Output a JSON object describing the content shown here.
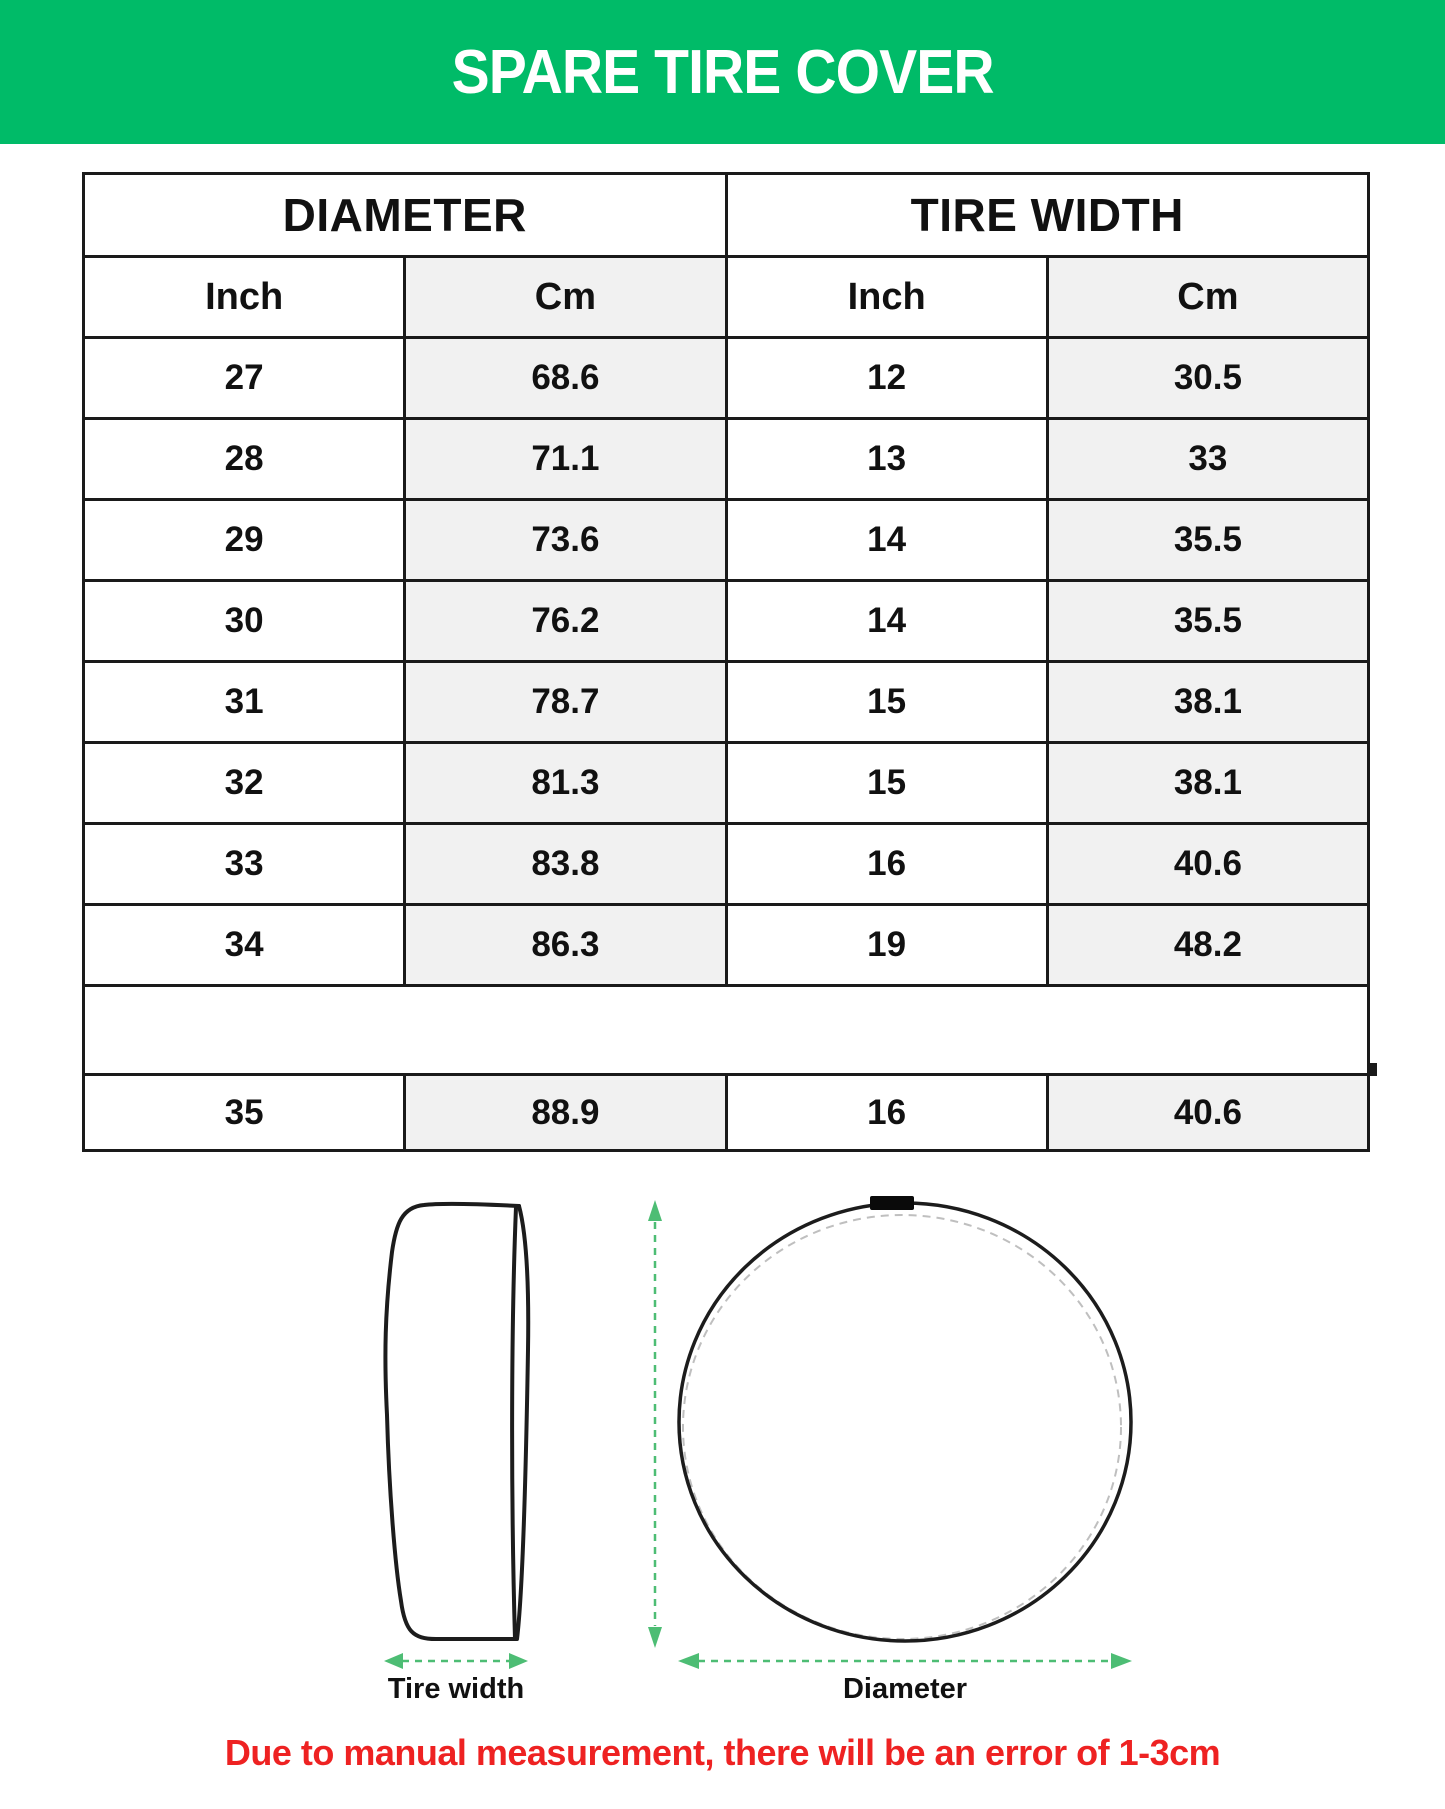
{
  "header": {
    "title": "SPARE TIRE COVER"
  },
  "table": {
    "column_groups": [
      "DIAMETER",
      "TIRE WIDTH"
    ],
    "sub_headers": [
      "Inch",
      "Cm",
      "Inch",
      "Cm"
    ],
    "rows": [
      {
        "type": "data",
        "cells": [
          "27",
          "68.6",
          "12",
          "30.5"
        ]
      },
      {
        "type": "data",
        "cells": [
          "28",
          "71.1",
          "13",
          "33"
        ]
      },
      {
        "type": "data",
        "cells": [
          "29",
          "73.6",
          "14",
          "35.5"
        ]
      },
      {
        "type": "data",
        "cells": [
          "30",
          "76.2",
          "14",
          "35.5"
        ]
      },
      {
        "type": "data",
        "cells": [
          "31",
          "78.7",
          "15",
          "38.1"
        ]
      },
      {
        "type": "data",
        "cells": [
          "32",
          "81.3",
          "15",
          "38.1"
        ]
      },
      {
        "type": "data",
        "cells": [
          "33",
          "83.8",
          "16",
          "40.6"
        ]
      },
      {
        "type": "data",
        "cells": [
          "34",
          "86.3",
          "19",
          "48.2"
        ]
      },
      {
        "type": "spacer",
        "cells": [
          "",
          "",
          "",
          ""
        ]
      },
      {
        "type": "data",
        "cells": [
          "35",
          "88.9",
          "16",
          "40.6"
        ]
      }
    ]
  },
  "diagram": {
    "tire_width_label": "Tire width",
    "diameter_label": "Diameter"
  },
  "footer": {
    "note": "Due to manual measurement, there will be an error of 1-3cm"
  },
  "colors": {
    "header_background": "#00bb68",
    "arrow_green": "#4dbd74",
    "note_red": "#ee2222",
    "shaded_column": "#f1f1f1",
    "table_line": "#1a1a1a"
  }
}
